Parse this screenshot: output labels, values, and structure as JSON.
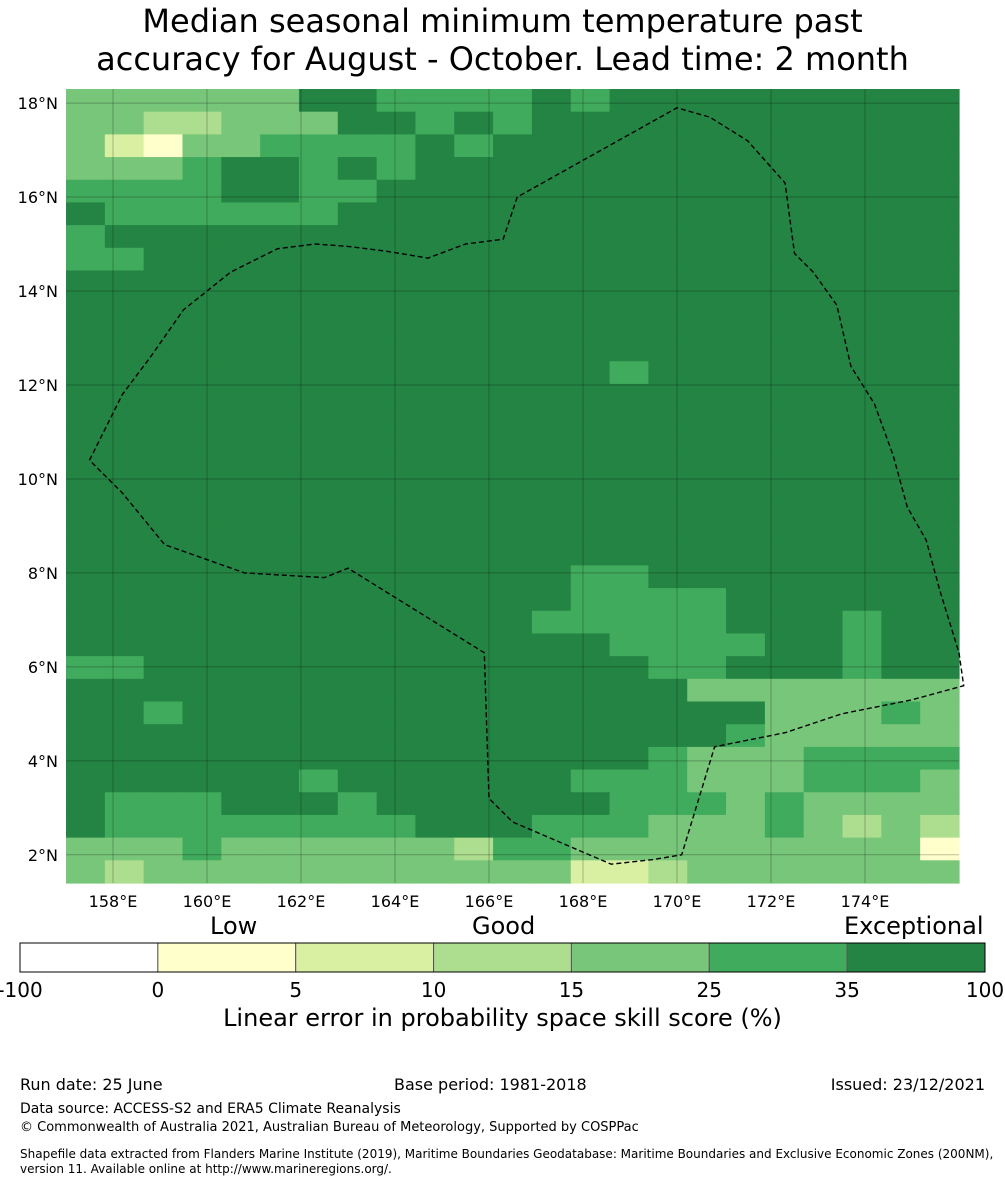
{
  "title_line1": "Median seasonal minimum temperature past",
  "title_line2": "accuracy for August - October. Lead time: 2 month",
  "map": {
    "lon_range": [
      157,
      176
    ],
    "lat_range": [
      1.4,
      18.3
    ],
    "lon_ticks": [
      "158°E",
      "160°E",
      "162°E",
      "164°E",
      "166°E",
      "168°E",
      "170°E",
      "172°E",
      "174°E"
    ],
    "lat_ticks": [
      "18°N",
      "16°N",
      "14°N",
      "12°N",
      "10°N",
      "8°N",
      "6°N",
      "4°N",
      "2°N"
    ],
    "grid_lines": true,
    "eez_boundary": "dashed",
    "skill_classes": [
      {
        "code": "A",
        "range": "0-5",
        "color": "#ffffcc"
      },
      {
        "code": "B",
        "range": "5-10",
        "color": "#d9f0a3"
      },
      {
        "code": "C",
        "range": "10-15",
        "color": "#addd8e"
      },
      {
        "code": "D",
        "range": "15-25",
        "color": "#78c679"
      },
      {
        "code": "E",
        "range": "25-35",
        "color": "#41ab5d"
      },
      {
        "code": "F",
        "range": "35-100",
        "color": "#238443"
      }
    ],
    "grid_rows_north_to_south": [
      "DDDDDDFFEEEEFEFFFFFFFFF",
      "DDCCDDDFFEFEFFFFFFFFFFF",
      "DBADDEEEEFEFFFFFFFFFFFF",
      "DDDEFFEFEFFFFFFFFFFFFFF",
      "EEEEFFEEFFFFFFFFFFFFFFF",
      "FEEEEEEFFFFFFFFFFFFFFFF",
      "EFFFFFFFFFFFFFFFFFFFFFF",
      "EEFFFFFFFFFFFFFFFFFFFFF",
      "FFFFFFFFFFFFFFFFFFFFFFF",
      "FFFFFFFFFFFFFFFFFFFFFFF",
      "FFFFFFFFFFFFFFFFFFFFFFF",
      "FFFFFFFFFFFFFFFFFFFFFFF",
      "FFFFFFFFFFFFFFEFFFFFFFF",
      "FFFFFFFFFFFFFFFFFFFFFFF",
      "FFFFFFFFFFFFFFFFFFFFFFF",
      "FFFFFFFFFFFFFFFFFFFFFFF",
      "FFFFFFFFFFFFFFFFFFFFFFF",
      "FFFFFFFFFFFFFFFFFFFFFFF",
      "FFFFFFFFFFFFFFFFFFFFFFF",
      "FFFFFFFFFFFFFFFFFFFFFFF",
      "FFFFFFFFFFFFFFFFFFFFFFF",
      "FFFFFFFFFFFFFEEFFFFFFFF",
      "FFFFFFFFFFFFFEEEEFFFFFF",
      "FFFFFFFFFFFFEEEEEFFFEFF",
      "FFFFFFFFFFFFFFEEEEFFEFF",
      "EEFFFFFFFFFFFFFEEFFFEFF",
      "FFFFFFFFFFFFFFFFDDDDDDD",
      "FFEFFFFFFFFFFFFFFFDDDED",
      "FFFFFFFFFFFFFFFFFEDDDDD",
      "FFFFFFFFFFFFFFFEDDDEEEE",
      "FFFFFFEFFFFFFEEEDDDEEED",
      "FEEEFFFEFFFFFFEEEDEDDDD",
      "FEEEEEEEEFFFEEEDDDEDCDC",
      "DDDEDDDDDDCEEDDDDDDDDDA",
      "DCDDDDDDDDDDDBBCDDDDDDD"
    ],
    "eez_outline": [
      [
        157.5,
        10.4
      ],
      [
        158.2,
        11.8
      ],
      [
        158.8,
        12.6
      ],
      [
        159.5,
        13.6
      ],
      [
        160.5,
        14.4
      ],
      [
        161.5,
        14.9
      ],
      [
        162.3,
        15.0
      ],
      [
        163.0,
        14.95
      ],
      [
        163.8,
        14.85
      ],
      [
        164.7,
        14.7
      ],
      [
        165.5,
        15.0
      ],
      [
        166.3,
        15.1
      ],
      [
        166.6,
        16.0
      ],
      [
        170.0,
        17.9
      ],
      [
        170.7,
        17.7
      ],
      [
        171.5,
        17.2
      ],
      [
        172.3,
        16.3
      ],
      [
        172.5,
        14.8
      ],
      [
        172.9,
        14.4
      ],
      [
        173.4,
        13.7
      ],
      [
        173.7,
        12.4
      ],
      [
        174.2,
        11.6
      ],
      [
        174.6,
        10.5
      ],
      [
        174.9,
        9.4
      ],
      [
        175.3,
        8.7
      ],
      [
        175.6,
        7.6
      ],
      [
        176.0,
        6.3
      ],
      [
        176.1,
        5.6
      ],
      [
        175.0,
        5.3
      ],
      [
        173.5,
        5.0
      ],
      [
        172.3,
        4.6
      ],
      [
        170.8,
        4.3
      ],
      [
        170.1,
        2.0
      ],
      [
        169.5,
        1.9
      ],
      [
        168.6,
        1.8
      ],
      [
        166.5,
        2.7
      ],
      [
        166.0,
        3.2
      ],
      [
        165.9,
        6.3
      ],
      [
        163.0,
        8.1
      ],
      [
        162.5,
        7.9
      ],
      [
        160.8,
        8.0
      ],
      [
        159.1,
        8.6
      ],
      [
        158.2,
        9.7
      ],
      [
        157.5,
        10.4
      ]
    ]
  },
  "legend": {
    "qual_low": "Low",
    "qual_good": "Good",
    "qual_exceptional": "Exceptional",
    "bounds": [
      "-100",
      "0",
      "5",
      "10",
      "15",
      "25",
      "35",
      "100"
    ],
    "colors": [
      "#ffffff",
      "#ffffcc",
      "#d9f0a3",
      "#addd8e",
      "#78c679",
      "#41ab5d",
      "#238443"
    ],
    "title": "Linear error in probability space skill score (%)"
  },
  "footer": {
    "run_date": "Run date: 25 June",
    "base_period": "Base period: 1981-2018",
    "issued": "Issued: 23/12/2021",
    "data_source": "Data source: ACCESS-S2 and ERA5 Climate Reanalysis",
    "copyright": "© Commonwealth of Australia 2021, Australian Bureau of Meteorology, Supported by COSPPac",
    "shapefile_line1": "Shapefile data extracted from Flanders Marine Institute (2019), Maritime Boundaries Geodatabase: Maritime Boundaries and Exclusive Economic Zones (200NM),",
    "shapefile_line2": "version 11. Available online at http://www.marineregions.org/."
  }
}
